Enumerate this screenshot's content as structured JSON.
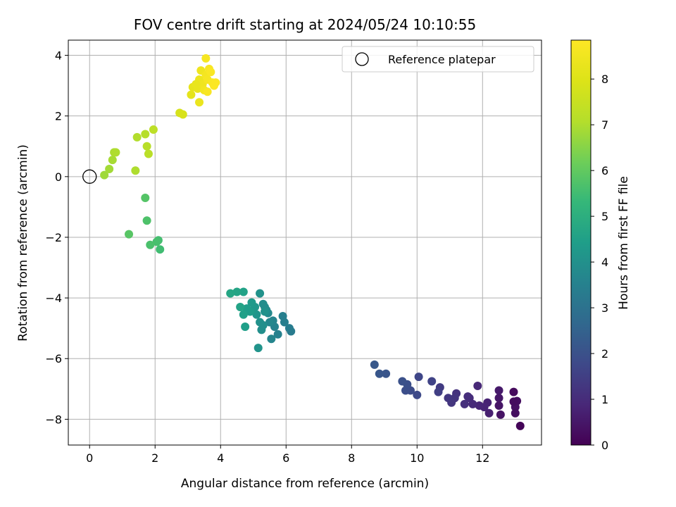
{
  "chart_data": {
    "type": "scatter",
    "title": "FOV centre drift starting at 2024/05/24 10:10:55",
    "xlabel": "Angular distance from reference (arcmin)",
    "ylabel": "Rotation from reference (arcmin)",
    "xlim": [
      -0.65,
      13.8
    ],
    "ylim": [
      -8.85,
      4.5
    ],
    "xticks": [
      0,
      2,
      4,
      6,
      8,
      10,
      12
    ],
    "yticks": [
      -8,
      -6,
      -4,
      -2,
      0,
      2,
      4
    ],
    "grid": true,
    "legend": {
      "position": "top-right",
      "entries": [
        "Reference platepar"
      ]
    },
    "reference_point": {
      "x": 0,
      "y": 0,
      "marker": "open-circle"
    },
    "colorbar": {
      "label": "Hours from first FF file",
      "range": [
        0,
        8.85
      ],
      "ticks": [
        0,
        1,
        2,
        3,
        4,
        5,
        6,
        7,
        8
      ],
      "colormap": "viridis"
    },
    "points": [
      [
        13.15,
        -8.22,
        0.1
      ],
      [
        12.95,
        -7.1,
        0.2
      ],
      [
        13.05,
        -7.4,
        0.3
      ],
      [
        13.0,
        -7.6,
        0.35
      ],
      [
        12.55,
        -7.85,
        0.4
      ],
      [
        12.5,
        -7.55,
        0.45
      ],
      [
        12.5,
        -7.3,
        0.5
      ],
      [
        12.5,
        -7.05,
        0.55
      ],
      [
        12.95,
        -7.42,
        0.25
      ],
      [
        13.0,
        -7.8,
        0.3
      ],
      [
        12.2,
        -7.8,
        0.7
      ],
      [
        12.15,
        -7.45,
        0.75
      ],
      [
        12.05,
        -7.6,
        0.8
      ],
      [
        11.9,
        -7.55,
        0.85
      ],
      [
        11.85,
        -6.9,
        0.9
      ],
      [
        11.7,
        -7.5,
        0.95
      ],
      [
        11.6,
        -7.3,
        1.0
      ],
      [
        11.55,
        -7.25,
        1.05
      ],
      [
        11.45,
        -7.5,
        1.1
      ],
      [
        11.2,
        -7.15,
        1.15
      ],
      [
        11.15,
        -7.3,
        1.2
      ],
      [
        11.05,
        -7.45,
        1.25
      ],
      [
        10.95,
        -7.3,
        1.3
      ],
      [
        10.7,
        -6.95,
        1.4
      ],
      [
        10.65,
        -7.1,
        1.5
      ],
      [
        10.45,
        -6.75,
        1.6
      ],
      [
        10.05,
        -6.6,
        1.7
      ],
      [
        10.0,
        -7.2,
        1.8
      ],
      [
        9.8,
        -7.05,
        1.85
      ],
      [
        9.65,
        -7.05,
        1.9
      ],
      [
        9.7,
        -6.85,
        1.95
      ],
      [
        9.55,
        -6.75,
        2.0
      ],
      [
        9.05,
        -6.5,
        2.1
      ],
      [
        8.85,
        -6.5,
        2.15
      ],
      [
        8.7,
        -6.2,
        2.2
      ],
      [
        6.15,
        -5.1,
        3.3
      ],
      [
        6.1,
        -5.0,
        3.35
      ],
      [
        5.95,
        -4.8,
        3.4
      ],
      [
        5.9,
        -4.6,
        3.45
      ],
      [
        5.75,
        -5.2,
        3.5
      ],
      [
        5.65,
        -4.95,
        3.55
      ],
      [
        5.6,
        -4.75,
        3.6
      ],
      [
        5.55,
        -5.35,
        3.65
      ],
      [
        5.5,
        -4.8,
        3.7
      ],
      [
        5.45,
        -4.5,
        3.75
      ],
      [
        5.4,
        -4.4,
        3.8
      ],
      [
        5.35,
        -4.3,
        3.85
      ],
      [
        5.3,
        -4.2,
        3.9
      ],
      [
        5.25,
        -5.05,
        3.95
      ],
      [
        5.2,
        -4.8,
        4.0
      ],
      [
        5.2,
        -3.85,
        4.05
      ],
      [
        5.15,
        -5.65,
        4.1
      ],
      [
        5.1,
        -4.55,
        4.15
      ],
      [
        5.05,
        -4.3,
        4.2
      ],
      [
        5.0,
        -4.4,
        4.25
      ],
      [
        4.95,
        -4.15,
        4.3
      ],
      [
        4.9,
        -4.45,
        4.35
      ],
      [
        4.8,
        -4.35,
        4.4
      ],
      [
        4.75,
        -4.95,
        4.45
      ],
      [
        4.7,
        -4.55,
        4.5
      ],
      [
        4.7,
        -3.8,
        4.55
      ],
      [
        4.6,
        -4.3,
        4.6
      ],
      [
        4.5,
        -3.8,
        4.65
      ],
      [
        4.3,
        -3.85,
        4.7
      ],
      [
        5.3,
        -4.9,
        3.95
      ],
      [
        5.35,
        -4.45,
        4.0
      ],
      [
        2.15,
        -2.4,
        5.5
      ],
      [
        2.1,
        -2.1,
        5.55
      ],
      [
        2.05,
        -2.15,
        5.6
      ],
      [
        1.85,
        -2.25,
        5.65
      ],
      [
        1.75,
        -1.45,
        5.7
      ],
      [
        1.7,
        -0.7,
        5.8
      ],
      [
        1.2,
        -1.9,
        5.85
      ],
      [
        0.45,
        0.05,
        6.8
      ],
      [
        0.6,
        0.25,
        6.85
      ],
      [
        0.7,
        0.55,
        6.9
      ],
      [
        0.75,
        0.8,
        6.95
      ],
      [
        0.8,
        0.8,
        7.0
      ],
      [
        1.4,
        0.2,
        7.0
      ],
      [
        1.45,
        1.3,
        7.05
      ],
      [
        1.7,
        1.4,
        7.1
      ],
      [
        1.75,
        1.0,
        7.15
      ],
      [
        1.8,
        0.75,
        7.2
      ],
      [
        1.95,
        1.55,
        7.25
      ],
      [
        2.75,
        2.1,
        7.8
      ],
      [
        2.85,
        2.05,
        7.85
      ],
      [
        3.1,
        2.7,
        8.2
      ],
      [
        3.15,
        2.95,
        8.25
      ],
      [
        3.3,
        2.9,
        8.3
      ],
      [
        3.35,
        2.45,
        8.35
      ],
      [
        3.35,
        3.2,
        8.4
      ],
      [
        3.4,
        3.5,
        8.45
      ],
      [
        3.45,
        3.05,
        8.5
      ],
      [
        3.5,
        2.85,
        8.55
      ],
      [
        3.55,
        3.35,
        8.6
      ],
      [
        3.55,
        3.9,
        8.65
      ],
      [
        3.6,
        3.2,
        8.65
      ],
      [
        3.6,
        2.8,
        8.7
      ],
      [
        3.65,
        3.55,
        8.7
      ],
      [
        3.7,
        3.45,
        8.75
      ],
      [
        3.75,
        3.1,
        8.75
      ],
      [
        3.8,
        3.0,
        8.8
      ],
      [
        3.85,
        3.1,
        8.8
      ],
      [
        3.25,
        3.05,
        8.3
      ]
    ]
  }
}
